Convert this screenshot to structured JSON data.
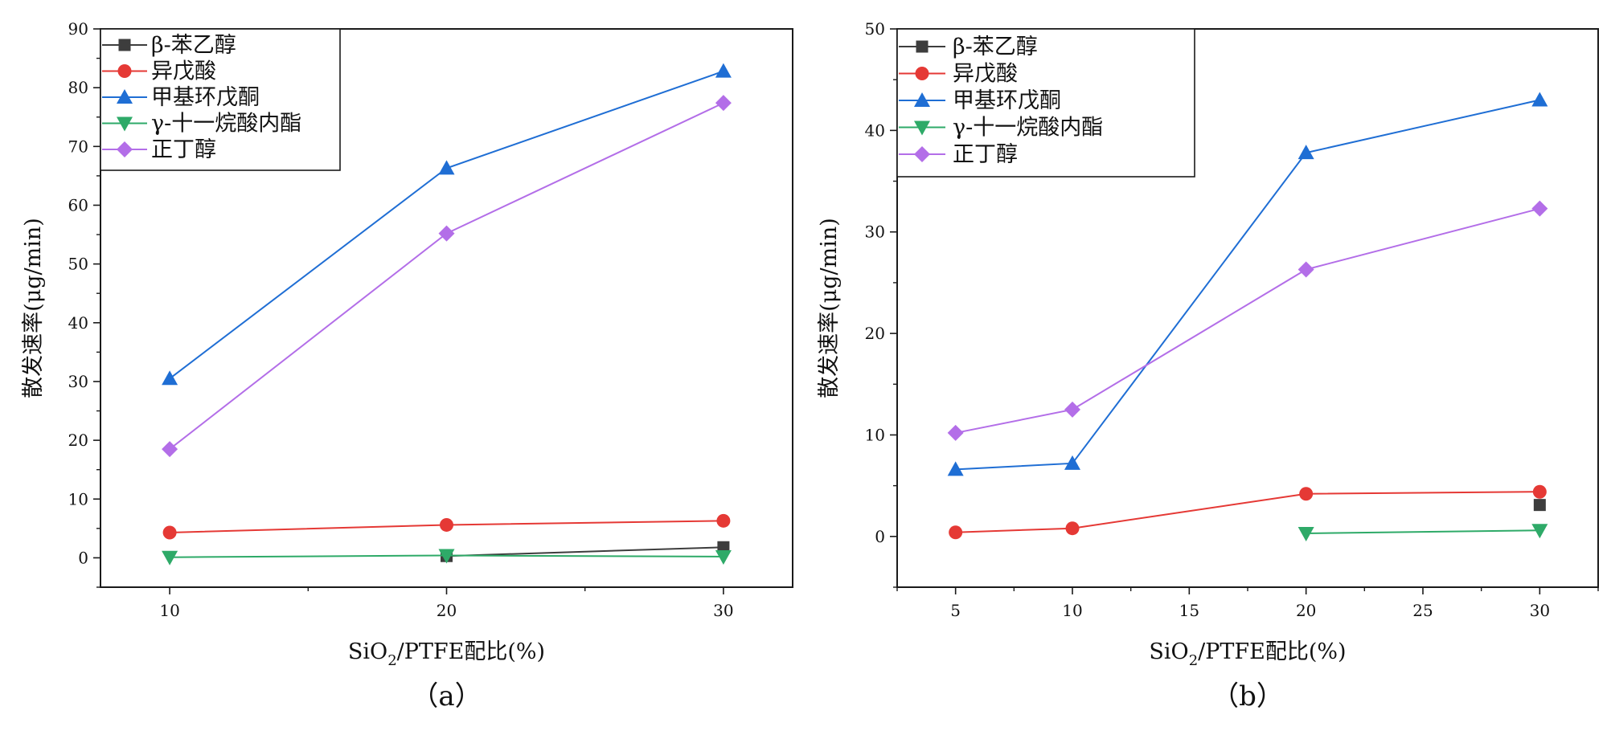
{
  "chart_data": [
    {
      "type": "line",
      "panel_label": "（a）",
      "xlabel_main": "SiO",
      "xlabel_sub": "2",
      "xlabel_rest": "/PTFE配比(%)",
      "ylabel": "散发速率(μg/min)",
      "xlim": [
        7.5,
        32.5
      ],
      "ylim": [
        -5,
        90
      ],
      "x_ticks": [
        10,
        20,
        30
      ],
      "x_minor_ticks": [
        15,
        25
      ],
      "y_ticks": [
        0,
        10,
        20,
        30,
        40,
        50,
        60,
        70,
        80,
        90
      ],
      "y_minor_ticks": [
        -5,
        5,
        15,
        25,
        35,
        45,
        55,
        65,
        75,
        85
      ],
      "legend_position": "top-left",
      "series": [
        {
          "name": "β-苯乙醇",
          "color": "#3d3d3d",
          "marker": "square",
          "x": [
            20,
            30
          ],
          "y": [
            0.3,
            1.8
          ]
        },
        {
          "name": "异戊酸",
          "color": "#e53935",
          "marker": "circle",
          "x": [
            10,
            20,
            30
          ],
          "y": [
            4.3,
            5.6,
            6.3
          ]
        },
        {
          "name": "甲基环戊酮",
          "color": "#1f6ed4",
          "marker": "triangle-up",
          "x": [
            10,
            20,
            30
          ],
          "y": [
            30.5,
            66.3,
            82.8
          ]
        },
        {
          "name": "γ-十一烷酸内酯",
          "color": "#2eaa68",
          "marker": "triangle-down",
          "x": [
            10,
            20,
            30
          ],
          "y": [
            0.1,
            0.4,
            0.2
          ]
        },
        {
          "name": "正丁醇",
          "color": "#b36ee8",
          "marker": "diamond",
          "x": [
            10,
            20,
            30
          ],
          "y": [
            18.5,
            55.2,
            77.4
          ]
        }
      ]
    },
    {
      "type": "line",
      "panel_label": "（b）",
      "xlabel_main": "SiO",
      "xlabel_sub": "2",
      "xlabel_rest": "/PTFE配比(%)",
      "ylabel": "散发速率(μg/min)",
      "xlim": [
        2.5,
        32.5
      ],
      "ylim": [
        -5,
        50
      ],
      "x_ticks": [
        5,
        10,
        15,
        20,
        25,
        30
      ],
      "x_minor_ticks": [
        2.5,
        7.5,
        12.5,
        17.5,
        22.5,
        27.5,
        32.5
      ],
      "y_ticks": [
        0,
        10,
        20,
        30,
        40,
        50
      ],
      "y_minor_ticks": [
        -5,
        5,
        15,
        25,
        35,
        45
      ],
      "legend_position": "top-left",
      "series": [
        {
          "name": "β-苯乙醇",
          "color": "#3d3d3d",
          "marker": "square",
          "x": [
            30
          ],
          "y": [
            3.1
          ]
        },
        {
          "name": "异戊酸",
          "color": "#e53935",
          "marker": "circle",
          "x": [
            5,
            10,
            20,
            30
          ],
          "y": [
            0.4,
            0.8,
            4.2,
            4.4
          ]
        },
        {
          "name": "甲基环戊酮",
          "color": "#1f6ed4",
          "marker": "triangle-up",
          "x": [
            5,
            10,
            20,
            30
          ],
          "y": [
            6.6,
            7.2,
            37.8,
            43.0
          ]
        },
        {
          "name": "γ-十一烷酸内酯",
          "color": "#2eaa68",
          "marker": "triangle-down",
          "x": [
            20,
            30
          ],
          "y": [
            0.3,
            0.6
          ]
        },
        {
          "name": "正丁醇",
          "color": "#b36ee8",
          "marker": "diamond",
          "x": [
            5,
            10,
            20,
            30
          ],
          "y": [
            10.2,
            12.5,
            26.3,
            32.3
          ]
        }
      ]
    }
  ]
}
